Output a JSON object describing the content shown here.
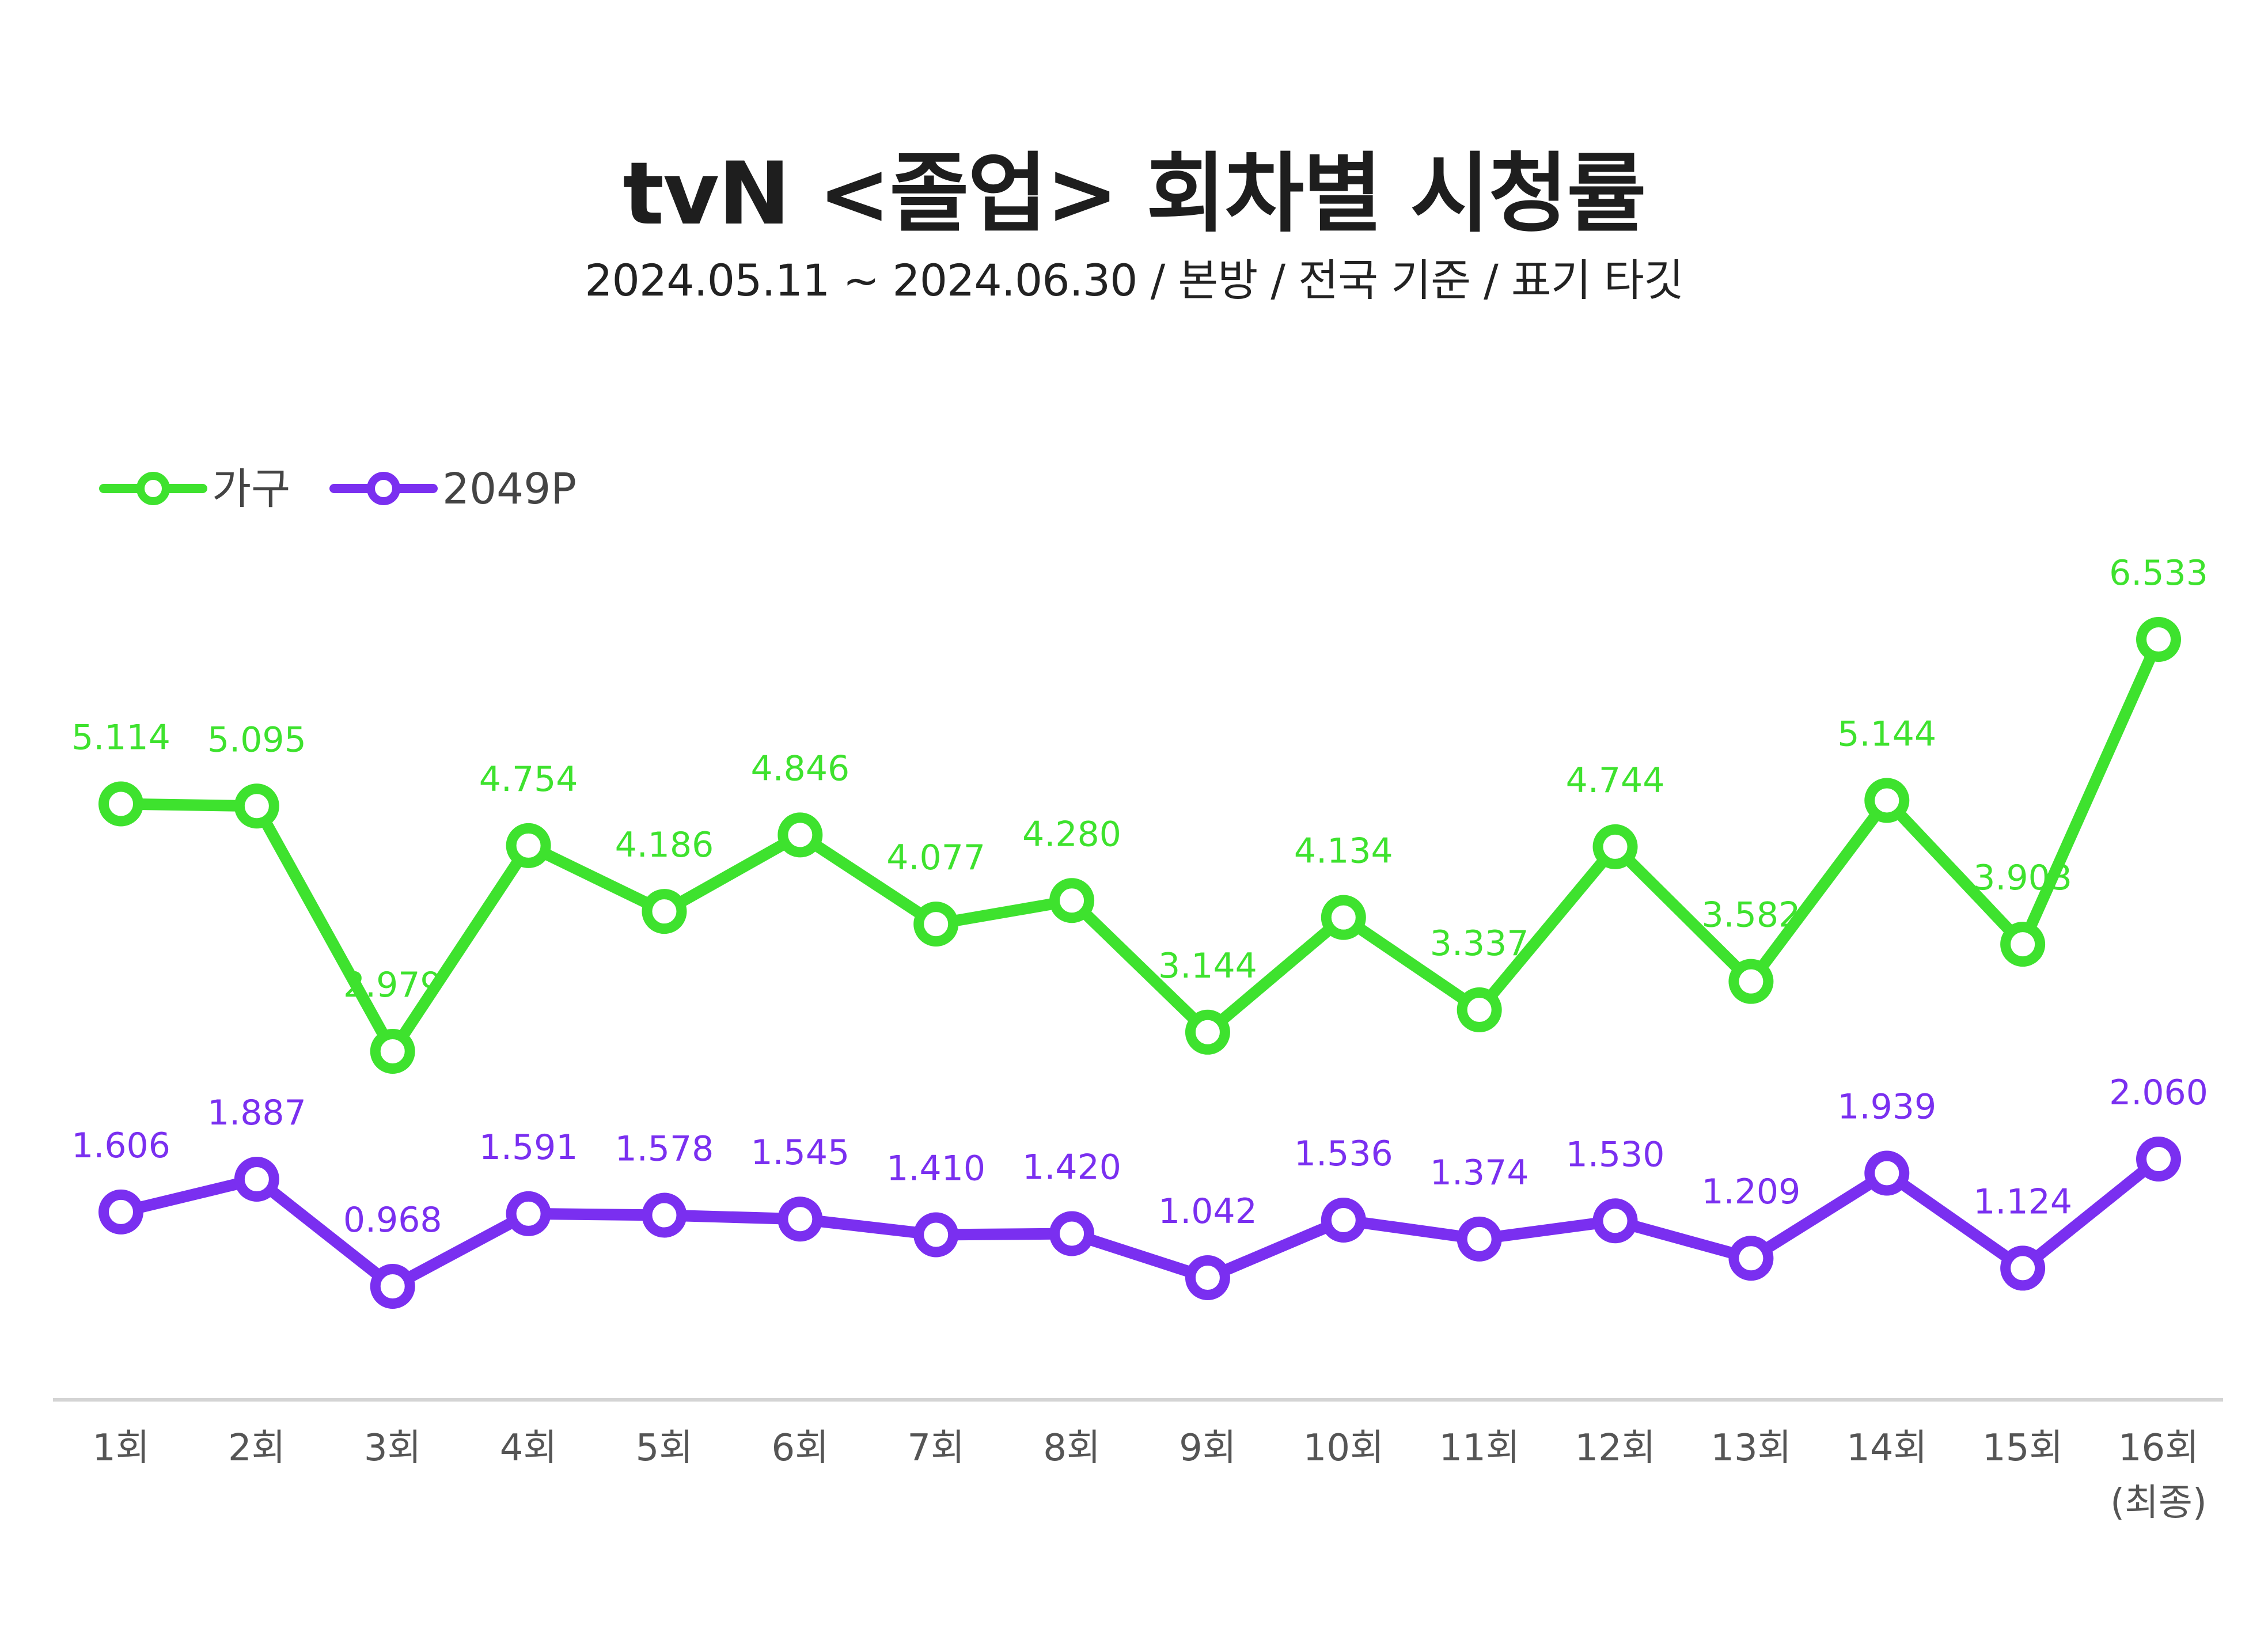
{
  "chart_data": {
    "type": "line",
    "title": "tvN <졸업> 회차별 시청률",
    "subtitle": "2024.05.11 ~ 2024.06.30 / 본방 / 전국 기준 / 표기 타깃",
    "categories": [
      "1회",
      "2회",
      "3회",
      "4회",
      "5회",
      "6회",
      "7회",
      "8회",
      "9회",
      "10회",
      "11회",
      "12회",
      "13회",
      "14회",
      "15회",
      "16회"
    ],
    "category_notes": {
      "15": "(최종)"
    },
    "series": [
      {
        "name": "가구",
        "color": "#3ee22e",
        "values": [
          5.114,
          5.095,
          2.979,
          4.754,
          4.186,
          4.846,
          4.077,
          4.28,
          3.144,
          4.134,
          3.337,
          4.744,
          3.582,
          5.144,
          3.903,
          6.533
        ],
        "labels": [
          "5.114",
          "5.095",
          "2.979",
          "4.754",
          "4.186",
          "4.846",
          "4.077",
          "4.280",
          "3.144",
          "4.134",
          "3.337",
          "4.744",
          "3.582",
          "5.144",
          "3.903",
          "6.533"
        ]
      },
      {
        "name": "2049P",
        "color": "#7a2ff0",
        "values": [
          1.606,
          1.887,
          0.968,
          1.591,
          1.578,
          1.545,
          1.41,
          1.42,
          1.042,
          1.536,
          1.374,
          1.53,
          1.209,
          1.939,
          1.124,
          2.06
        ],
        "labels": [
          "1.606",
          "1.887",
          "0.968",
          "1.591",
          "1.578",
          "1.545",
          "1.410",
          "1.420",
          "1.042",
          "1.536",
          "1.374",
          "1.530",
          "1.209",
          "1.939",
          "1.124",
          "2.060"
        ]
      }
    ],
    "legend": "top-left",
    "grid": false,
    "y_axis_visible": false,
    "colors": {
      "axis": "#d4d4d4",
      "tick_text": "#555555",
      "title": "#1e1e1e"
    }
  }
}
